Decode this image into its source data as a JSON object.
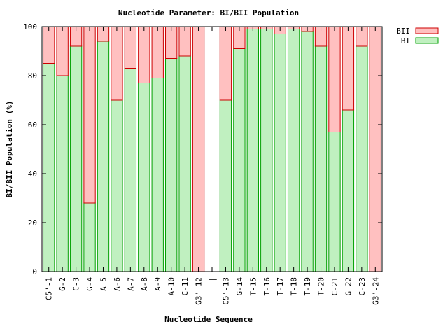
{
  "chart_data": {
    "type": "bar",
    "stacked": true,
    "title": "Nucleotide Parameter: BI/BII Population",
    "xlabel": "Nucleotide Sequence",
    "ylabel": "BI/BII Population (%)",
    "ylim": [
      0,
      100
    ],
    "yticks": [
      0,
      20,
      40,
      60,
      80,
      100
    ],
    "grid": false,
    "legend_position": "top-right, outside",
    "categories": [
      "C5'-1",
      "G-2",
      "C-3",
      "G-4",
      "A-5",
      "A-6",
      "A-7",
      "A-8",
      "A-9",
      "A-10",
      "C-11",
      "G3'-12",
      "|",
      "C5'-13",
      "G-14",
      "T-15",
      "T-16",
      "T-17",
      "T-18",
      "T-19",
      "T-20",
      "C-21",
      "G-22",
      "C-23",
      "G3'-24"
    ],
    "series": [
      {
        "name": "BII",
        "color": "#ffc0c0",
        "edge": "#cc0000",
        "values": [
          15,
          20,
          8,
          72,
          6,
          30,
          17,
          23,
          21,
          13,
          12,
          100,
          null,
          30,
          9,
          1,
          1,
          3,
          1,
          2,
          8,
          43,
          34,
          8,
          100
        ]
      },
      {
        "name": "BI",
        "color": "#c0f0c0",
        "edge": "#00a000",
        "values": [
          85,
          80,
          92,
          28,
          94,
          70,
          83,
          77,
          79,
          87,
          88,
          0,
          null,
          70,
          91,
          99,
          99,
          97,
          99,
          98,
          92,
          57,
          66,
          92,
          0
        ]
      }
    ]
  }
}
